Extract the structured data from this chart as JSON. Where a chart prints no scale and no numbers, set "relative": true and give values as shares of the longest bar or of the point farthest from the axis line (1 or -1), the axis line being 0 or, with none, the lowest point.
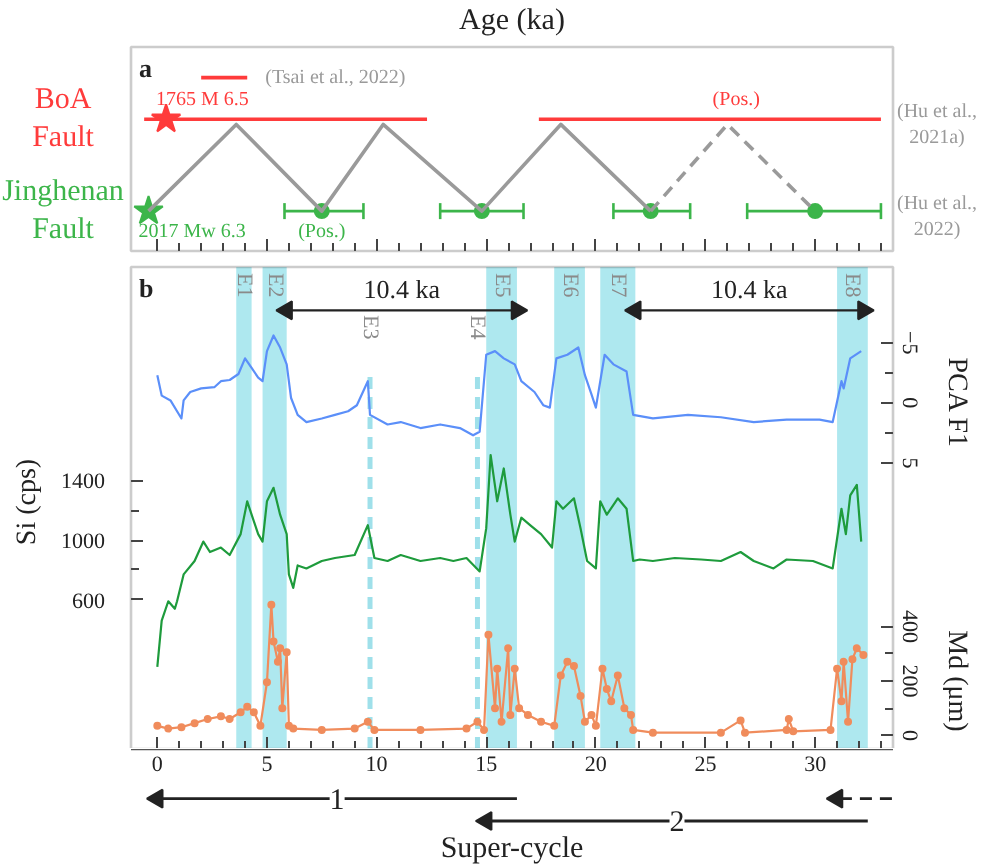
{
  "chart_data": [
    {
      "type": "scatter",
      "title": "a",
      "xlabel": "Age (ka)",
      "relative": true,
      "tick_labels": false,
      "xlim": [
        -1.2,
        33.55
      ],
      "xticks": [
        0,
        {
          "value": 1,
          "label": null
        },
        {
          "value": 2,
          "label": null
        },
        {
          "value": 3,
          "label": null
        },
        {
          "value": 4,
          "label": null
        },
        5,
        {
          "value": 6,
          "label": null
        },
        {
          "value": 7,
          "label": null
        },
        {
          "value": 8,
          "label": null
        },
        {
          "value": 9,
          "label": null
        },
        10,
        {
          "value": 11,
          "label": null
        },
        {
          "value": 12,
          "label": null
        },
        {
          "value": 13,
          "label": null
        },
        {
          "value": 14,
          "label": null
        },
        15,
        {
          "value": 16,
          "label": null
        },
        {
          "value": 17,
          "label": null
        },
        {
          "value": 18,
          "label": null
        },
        {
          "value": 19,
          "label": null
        },
        20,
        {
          "value": 21,
          "label": null
        },
        {
          "value": 22,
          "label": null
        },
        {
          "value": 23,
          "label": null
        },
        {
          "value": 24,
          "label": null
        },
        25,
        {
          "value": 26,
          "label": null
        },
        {
          "value": 27,
          "label": null
        },
        {
          "value": 28,
          "label": null
        },
        {
          "value": 29,
          "label": null
        },
        30,
        {
          "value": 31,
          "label": null
        },
        {
          "value": 32,
          "label": null
        },
        {
          "value": 33,
          "label": null
        }
      ],
      "series": [
        {
          "name": "BoA Fault",
          "type": "line",
          "color": "#ff3b3b",
          "x": [
            -0.6,
            12.3
          ],
          "values": [
            0.76,
            0.76
          ]
        },
        {
          "type": "line",
          "color": "#ff3b3b",
          "x": [
            17.4,
            33.0
          ],
          "values": [
            0.76,
            0.76
          ]
        },
        {
          "type": "line",
          "color": "#ff3b3b",
          "x": [
            2.0,
            4.1
          ],
          "values": [
            1.0,
            1.0
          ]
        },
        {
          "color": "#ff3b3b",
          "marker": "star",
          "x": [
            0.4
          ],
          "values": [
            0.76
          ]
        },
        {
          "name": "Jinghenan Fault",
          "color": "#3cb54a",
          "marker": "circle",
          "x": [
            7.5,
            14.8,
            22.5,
            30.0
          ],
          "values": [
            0.23,
            0.23,
            0.23,
            0.23
          ],
          "xerrors": [
            [
              5.8,
              9.4
            ],
            [
              12.9,
              16.7
            ],
            [
              20.8,
              24.3
            ],
            [
              26.9,
              33.0
            ]
          ]
        },
        {
          "color": "#3cb54a",
          "marker": "star",
          "x": [
            -0.4
          ],
          "values": [
            0.23
          ]
        },
        {
          "type": "line",
          "color": "#9a9a9a",
          "line_style": "solid",
          "x": [
            -0.4,
            3.6,
            7.5,
            10.3,
            14.8,
            18.4,
            22.5
          ],
          "values": [
            0.23,
            0.73,
            0.23,
            0.73,
            0.23,
            0.73,
            0.23
          ]
        },
        {
          "type": "line",
          "color": "#9a9a9a",
          "line_style": "dashed",
          "x": [
            22.5,
            26.0,
            30.0
          ],
          "values": [
            0.23,
            0.73,
            0.23
          ]
        }
      ],
      "annotations": [
        {
          "text": "(Tsai et al., 2022)",
          "x": 4.1,
          "y": 1.0
        },
        {
          "text": "1765 M 6.5",
          "x": 0.4,
          "y": 0.76
        },
        {
          "text": "(Pos.)",
          "x": 26.4,
          "y": 0.76
        },
        "(Hu et al., 2021a)",
        {
          "text": "2017 Mw 6.3",
          "x": -0.4,
          "y": 0.23
        },
        {
          "text": "(Pos.)",
          "x": 7.5,
          "y": 0.23
        },
        "(Hu et al., 2022)"
      ]
    },
    {
      "type": "line",
      "title": "b",
      "ylabel": "Si (cps)",
      "y2label": "PCA F1",
      "y3label": "Md (μm)",
      "tick_labels": "y",
      "xlim": [
        -1.2,
        33.55
      ],
      "xticks": [
        0,
        {
          "value": 1,
          "label": null
        },
        {
          "value": 2,
          "label": null
        },
        {
          "value": 3,
          "label": null
        },
        {
          "value": 4,
          "label": null
        },
        5,
        {
          "value": 6,
          "label": null
        },
        {
          "value": 7,
          "label": null
        },
        {
          "value": 8,
          "label": null
        },
        {
          "value": 9,
          "label": null
        },
        10,
        {
          "value": 11,
          "label": null
        },
        {
          "value": 12,
          "label": null
        },
        {
          "value": 13,
          "label": null
        },
        {
          "value": 14,
          "label": null
        },
        15,
        {
          "value": 16,
          "label": null
        },
        {
          "value": 17,
          "label": null
        },
        {
          "value": 18,
          "label": null
        },
        {
          "value": 19,
          "label": null
        },
        20,
        {
          "value": 21,
          "label": null
        },
        {
          "value": 22,
          "label": null
        },
        {
          "value": 23,
          "label": null
        },
        {
          "value": 24,
          "label": null
        },
        25,
        {
          "value": 26,
          "label": null
        },
        {
          "value": 27,
          "label": null
        },
        {
          "value": 28,
          "label": null
        },
        {
          "value": 29,
          "label": null
        },
        30,
        {
          "value": 31,
          "label": null
        },
        {
          "value": 32,
          "label": null
        },
        {
          "value": 33,
          "label": null
        }
      ],
      "ylim": [
        -400,
        2830
      ],
      "yticks": [
        600,
        {
          "value": 800,
          "label": null
        },
        1000,
        {
          "value": 1200,
          "label": null
        },
        1400
      ],
      "y2lim": [
        28.8,
        -11.3
      ],
      "y2ticks": [
        -5,
        {
          "value": -2.5,
          "label": null
        },
        0,
        {
          "value": 2.5,
          "label": null
        },
        5
      ],
      "y3lim": [
        -50,
        1720
      ],
      "y3ticks": [
        0,
        {
          "value": 100,
          "label": null
        },
        200,
        {
          "value": 300,
          "label": null
        },
        400
      ],
      "series": [
        {
          "axis": "y2",
          "color": "#5b8ff9",
          "x": [
            0.0,
            0.2,
            0.6,
            1.1,
            1.2,
            1.5,
            2.0,
            2.6,
            2.9,
            3.3,
            3.7,
            4.0,
            4.3,
            4.6,
            4.8,
            5.0,
            5.3,
            5.6,
            5.9,
            6.1,
            6.4,
            6.8,
            7.5,
            8.1,
            8.7,
            9.1,
            9.6,
            9.7,
            10.5,
            11.1,
            12.0,
            12.9,
            13.8,
            14.4,
            14.7,
            15.0,
            15.4,
            15.8,
            16.3,
            16.6,
            17.2,
            17.6,
            17.9,
            18.2,
            18.7,
            19.2,
            19.5,
            19.8,
            20.0,
            20.4,
            20.8,
            21.4,
            21.7,
            22.6,
            24.2,
            25.7,
            27.2,
            28.7,
            30.2,
            30.8,
            31.2,
            31.3,
            31.6,
            32.1
          ],
          "values": [
            -2.3,
            -0.6,
            -0.2,
            1.3,
            -0.2,
            -0.9,
            -1.2,
            -1.3,
            -1.8,
            -1.9,
            -2.4,
            -3.7,
            -2.9,
            -2.1,
            -1.8,
            -4.3,
            -5.6,
            -4.6,
            -3.2,
            -0.4,
            1.0,
            1.6,
            1.3,
            1.0,
            0.7,
            0.2,
            -1.8,
            1.0,
            1.8,
            1.6,
            2.1,
            1.8,
            2.1,
            2.7,
            2.4,
            -4.0,
            -4.3,
            -3.7,
            -3.2,
            -1.8,
            -0.9,
            0.2,
            0.4,
            -3.7,
            -4.0,
            -4.6,
            -2.3,
            -0.7,
            0.4,
            -4.0,
            -3.2,
            -2.6,
            1.0,
            1.3,
            1.0,
            1.2,
            1.6,
            1.4,
            1.4,
            1.6,
            -1.8,
            -1.2,
            -3.7,
            -4.3
          ]
        },
        {
          "color": "#1e9b3c",
          "x": [
            0.0,
            0.2,
            0.5,
            0.8,
            0.9,
            1.2,
            1.7,
            2.1,
            2.4,
            2.9,
            3.3,
            3.8,
            4.1,
            4.3,
            4.6,
            4.8,
            5.0,
            5.3,
            5.6,
            5.9,
            6.0,
            6.2,
            6.4,
            6.8,
            7.5,
            8.1,
            9.0,
            9.6,
            9.9,
            10.5,
            11.1,
            12.0,
            12.9,
            13.5,
            14.1,
            14.7,
            15.0,
            15.2,
            15.5,
            15.8,
            16.1,
            16.3,
            16.6,
            17.0,
            17.5,
            18.0,
            18.2,
            18.5,
            19.0,
            19.3,
            19.6,
            20.0,
            20.2,
            20.5,
            21.0,
            21.4,
            21.7,
            22.0,
            22.6,
            23.6,
            24.8,
            25.7,
            26.6,
            27.2,
            28.1,
            28.7,
            29.9,
            30.8,
            31.2,
            31.4,
            31.6,
            31.9,
            32.1
          ],
          "values": [
            150,
            460,
            590,
            540,
            590,
            770,
            860,
            990,
            920,
            950,
            900,
            1040,
            1260,
            1170,
            1040,
            990,
            1260,
            1350,
            1170,
            1040,
            770,
            680,
            830,
            810,
            860,
            880,
            900,
            1100,
            880,
            860,
            900,
            860,
            880,
            860,
            880,
            790,
            1080,
            1570,
            1260,
            1480,
            1170,
            990,
            1150,
            1100,
            1040,
            950,
            1260,
            1210,
            1280,
            1080,
            860,
            810,
            1260,
            1170,
            1280,
            1210,
            860,
            870,
            860,
            880,
            870,
            860,
            920,
            860,
            810,
            870,
            860,
            810,
            1210,
            1040,
            1300,
            1370,
            990
          ]
        },
        {
          "axis": "y3",
          "color": "#f08c5c",
          "marker": "circle",
          "x": [
            0.0,
            0.5,
            1.1,
            1.7,
            2.3,
            2.9,
            3.3,
            3.8,
            4.1,
            4.4,
            4.7,
            5.0,
            5.2,
            5.3,
            5.5,
            5.6,
            5.7,
            5.9,
            6.0,
            6.2,
            7.5,
            9.0,
            9.6,
            9.9,
            12.0,
            14.1,
            14.6,
            14.9,
            15.1,
            15.4,
            15.5,
            15.7,
            16.0,
            16.1,
            16.3,
            16.5,
            16.9,
            17.5,
            18.1,
            18.4,
            18.7,
            19.0,
            19.3,
            19.5,
            19.8,
            20.0,
            20.3,
            20.5,
            20.7,
            21.0,
            21.3,
            21.6,
            21.7,
            22.6,
            25.7,
            26.6,
            26.8,
            28.7,
            28.8,
            29.0,
            30.7,
            31.0,
            31.2,
            31.3,
            31.5,
            31.7,
            31.9,
            32.2
          ],
          "values": [
            35,
            25,
            30,
            45,
            60,
            70,
            60,
            85,
            105,
            85,
            35,
            195,
            480,
            345,
            270,
            320,
            100,
            305,
            35,
            25,
            20,
            25,
            50,
            20,
            20,
            25,
            50,
            20,
            370,
            100,
            245,
            50,
            320,
            75,
            245,
            100,
            75,
            50,
            35,
            220,
            270,
            255,
            145,
            50,
            75,
            35,
            245,
            170,
            125,
            220,
            100,
            75,
            20,
            10,
            10,
            55,
            10,
            20,
            60,
            15,
            20,
            245,
            125,
            270,
            50,
            280,
            320,
            295
          ]
        },
        {
          "name": "10.4 ka",
          "color": "#222222",
          "marker": "triangle",
          "x": [
            5.9,
            16.4
          ],
          "values": [
            2540,
            2540
          ]
        },
        {
          "name": "10.4 ka",
          "color": "#222222",
          "marker": "triangle",
          "x": [
            21.8,
            32.2
          ],
          "values": [
            2540,
            2540
          ]
        }
      ],
      "bands": [
        {
          "axis": "x",
          "from": 3.6,
          "to": 4.3,
          "label": "E1",
          "color": "#aee8ef"
        },
        {
          "axis": "x",
          "from": 4.8,
          "to": 5.9,
          "label": "E2",
          "color": "#aee8ef"
        },
        {
          "axis": "x",
          "from": 15.0,
          "to": 16.4,
          "label": "E5",
          "color": "#aee8ef"
        },
        {
          "axis": "x",
          "from": 18.1,
          "to": 19.5,
          "label": "E6",
          "color": "#aee8ef"
        },
        {
          "axis": "x",
          "from": 20.2,
          "to": 21.8,
          "label": "E7",
          "color": "#aee8ef"
        },
        {
          "axis": "x",
          "from": 31.0,
          "to": 32.4,
          "label": "E8",
          "color": "#aee8ef"
        }
      ],
      "ref_lines": [
        {
          "axis": "x",
          "value": 9.7,
          "label": "E3",
          "color": "#9fe0ea",
          "line_style": "dashed"
        },
        {
          "axis": "x",
          "value": 14.6,
          "label": "E4",
          "color": "#9fe0ea",
          "line_style": "dashed"
        }
      ]
    },
    {
      "type": "line",
      "xlabel": "Super-cycle",
      "relative": true,
      "xlim": [
        -1.2,
        33.55
      ],
      "xticks": [
        0,
        5,
        10,
        15,
        20,
        25,
        30
      ],
      "series": [
        {
          "name": "1",
          "color": "#222222",
          "x": [
            16.4,
            0.0
          ],
          "values": [
            -0.69,
            -0.69
          ]
        },
        {
          "name": "2",
          "color": "#222222",
          "x": [
            32.4,
            15.0
          ],
          "values": [
            -1,
            -1
          ]
        },
        {
          "color": "#222222",
          "line_style": "dashed",
          "x": [
            33.5,
            31.0
          ],
          "values": [
            -0.69,
            -0.69
          ]
        },
        {
          "type": "scatter",
          "color": "#222222",
          "marker": "triangle",
          "x": [
            0.0,
            15.0,
            31.0
          ],
          "values": [
            -0.69,
            -1,
            -0.69
          ]
        }
      ]
    }
  ]
}
